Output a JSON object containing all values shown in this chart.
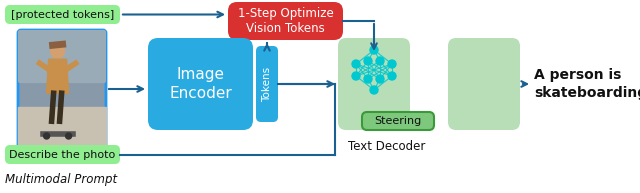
{
  "bg_color": "#ffffff",
  "colors": {
    "green_box": "#90EE90",
    "blue_box": "#29ABE2",
    "red_box": "#D93030",
    "steering_green": "#7DC87D",
    "decoder_green": "#B8DEB8",
    "arrow": "#1A6090",
    "text_dark": "#111111",
    "network_node": "#00C8D0",
    "image_border": "#2196F3",
    "photo_bg": "#B0B8C0"
  },
  "labels": {
    "protected_tokens": "[protected tokens]",
    "optimize_box": "1-Step Optimize\nVision Tokens",
    "image_encoder": "Image\nEncoder",
    "tokens": "Tokens",
    "steering": "Steering",
    "text_decoder": "Text Decoder",
    "describe_photo": "Describe the photo",
    "multimodal_prompt": "Multimodal Prompt",
    "output_line1": "A person is",
    "output_line2": "skateboarding"
  },
  "figsize": [
    6.4,
    1.93
  ],
  "dpi": 100
}
